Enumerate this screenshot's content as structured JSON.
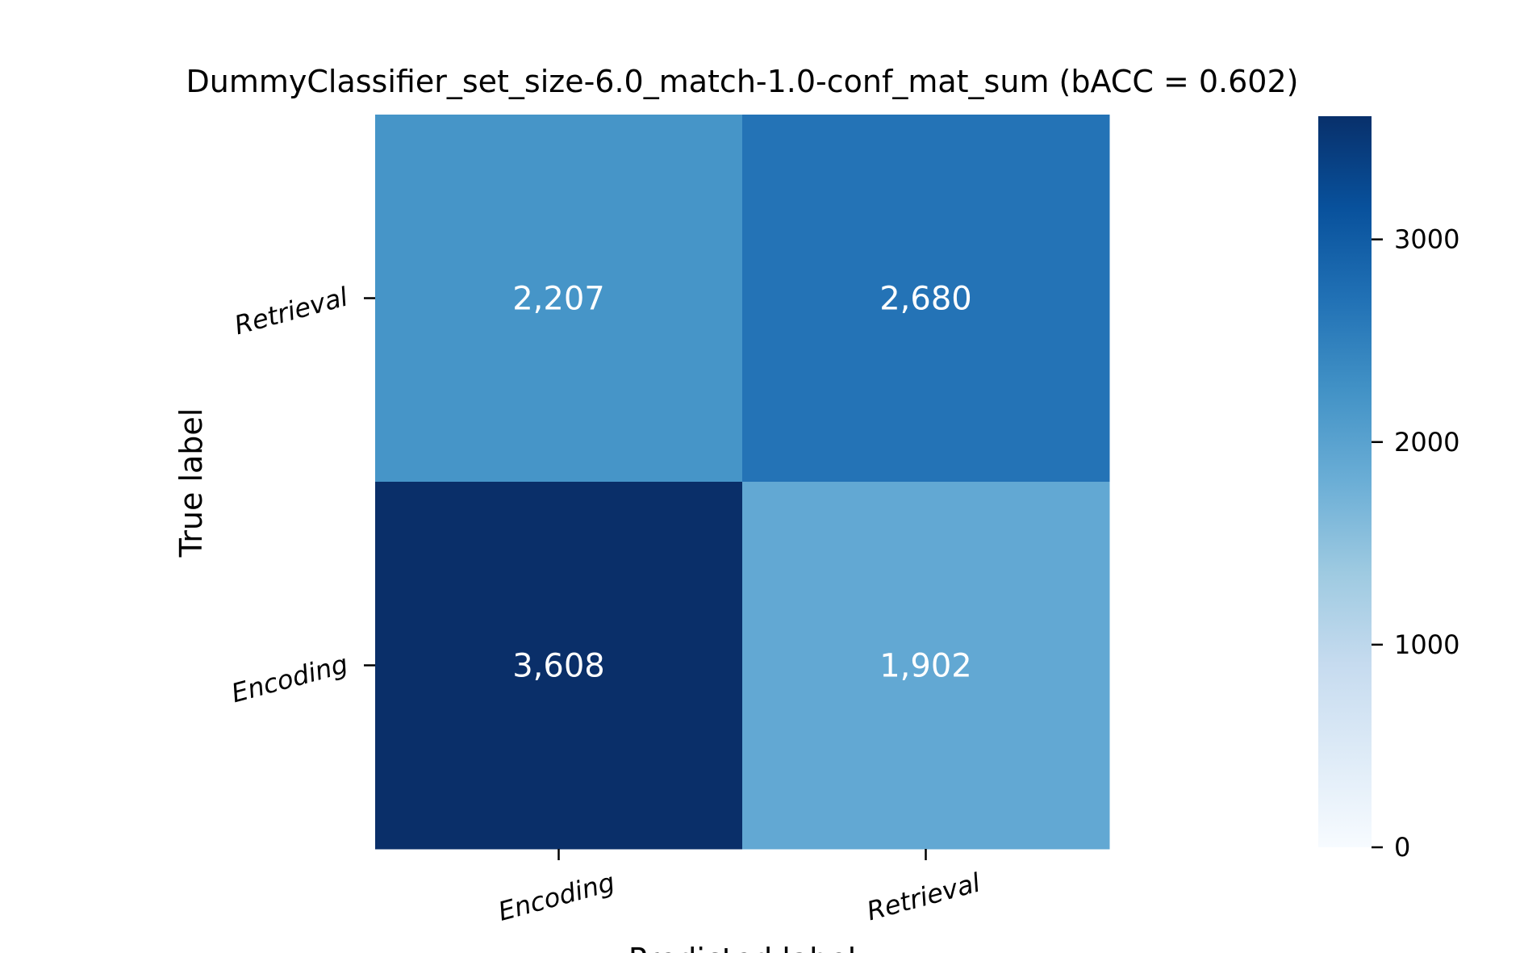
{
  "chart_data": {
    "type": "heatmap",
    "title": "DummyClassifier_set_size-6.0_match-1.0-conf_mat_sum (bACC = 0.602)",
    "xlabel": "Predicted label",
    "ylabel": "True label",
    "x_categories": [
      "Encoding",
      "Retrieval"
    ],
    "y_categories": [
      "Retrieval",
      "Encoding"
    ],
    "values": [
      [
        2207,
        2680
      ],
      [
        3608,
        1902
      ]
    ],
    "cell_labels": [
      [
        "2,207",
        "2,680"
      ],
      [
        "3,608",
        "1,902"
      ]
    ],
    "colorbar": {
      "vmin": 0,
      "vmax": 3608,
      "ticks": [
        0,
        1000,
        2000,
        3000
      ],
      "tick_labels": [
        "0",
        "1000",
        "2000",
        "3000"
      ],
      "colormap": "Blues"
    },
    "colors": {
      "cell_2207": "#4695c8",
      "cell_2680": "#2473b6",
      "cell_3608": "#0a2f69",
      "cell_1902": "#62a8d3",
      "annotation_text": "#ffffff"
    },
    "grid": false,
    "legend": "colorbar-right"
  }
}
